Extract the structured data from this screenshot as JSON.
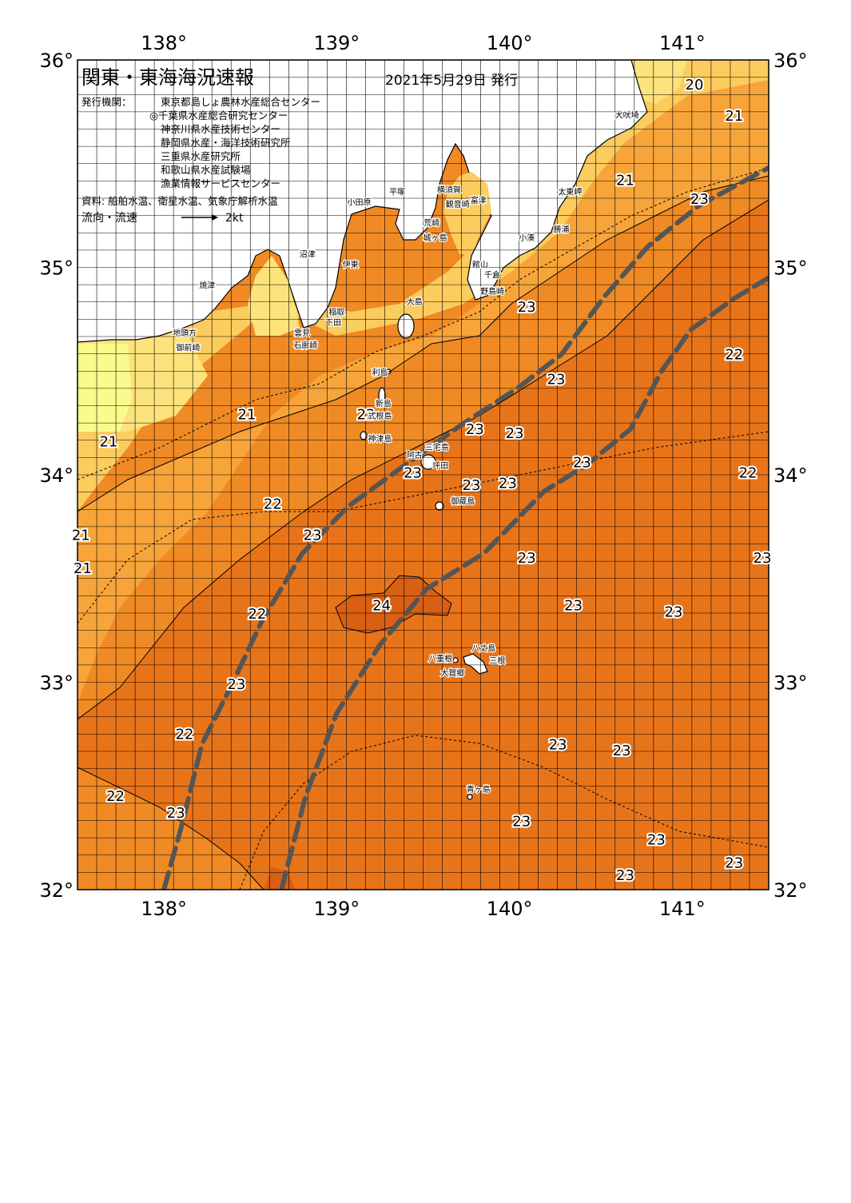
{
  "header": {
    "title": "関東・東海海況速報",
    "date": "2021年5月29日 発行",
    "issuer_label": "発行機関：",
    "issuers": [
      "東京都島しょ農林水産総合センター",
      "◎千葉県水産総合研究センター",
      "神奈川県水産技術センター",
      "静岡県水産・海洋技術研究所",
      "三重県水産研究所",
      "和歌山県水産試験場",
      "漁業情報サービスセンター"
    ],
    "source": "資料: 船舶水温、衛星水温、気象庁解析水温",
    "flow_label": "流向・流速",
    "flow_unit": "2kt"
  },
  "axes": {
    "lon_labels": [
      "138°",
      "139°",
      "140°",
      "141°"
    ],
    "lat_labels": [
      "36°",
      "35°",
      "34°",
      "33°",
      "32°"
    ]
  },
  "colors": {
    "land": "#ffffff",
    "t19": "#fbfb8c",
    "t20": "#fde37c",
    "t21": "#fbcc5e",
    "t22": "#f7a43a",
    "t23": "#f08a24",
    "t23h": "#e8741a",
    "t24": "#d85f13",
    "current": "#555555"
  },
  "temperatures": [
    {
      "value": "20",
      "lon": 141.07,
      "lat": 35.88
    },
    {
      "value": "21",
      "lon": 141.3,
      "lat": 35.73
    },
    {
      "value": "21",
      "lon": 140.67,
      "lat": 35.42
    },
    {
      "value": "23",
      "lon": 141.1,
      "lat": 35.33
    },
    {
      "value": "23",
      "lon": 140.1,
      "lat": 34.81
    },
    {
      "value": "22",
      "lon": 141.3,
      "lat": 34.58
    },
    {
      "value": "23",
      "lon": 140.27,
      "lat": 34.46
    },
    {
      "value": "21",
      "lon": 138.48,
      "lat": 34.29
    },
    {
      "value": "22",
      "lon": 139.17,
      "lat": 34.29
    },
    {
      "value": "23",
      "lon": 139.8,
      "lat": 34.22
    },
    {
      "value": "23",
      "lon": 140.03,
      "lat": 34.2
    },
    {
      "value": "21",
      "lon": 137.68,
      "lat": 34.16
    },
    {
      "value": "23",
      "lon": 140.42,
      "lat": 34.06
    },
    {
      "value": "23",
      "lon": 139.44,
      "lat": 34.01
    },
    {
      "value": "22",
      "lon": 141.38,
      "lat": 34.01
    },
    {
      "value": "23",
      "lon": 139.78,
      "lat": 33.95
    },
    {
      "value": "23",
      "lon": 139.99,
      "lat": 33.96
    },
    {
      "value": "22",
      "lon": 138.63,
      "lat": 33.86
    },
    {
      "value": "21",
      "lon": 137.52,
      "lat": 33.71
    },
    {
      "value": "23",
      "lon": 138.86,
      "lat": 33.71
    },
    {
      "value": "23",
      "lon": 140.1,
      "lat": 33.6
    },
    {
      "value": "21",
      "lon": 137.53,
      "lat": 33.55
    },
    {
      "value": "23",
      "lon": 141.5,
      "lat": 33.6
    },
    {
      "value": "24",
      "lon": 139.26,
      "lat": 33.37
    },
    {
      "value": "23",
      "lon": 140.37,
      "lat": 33.37
    },
    {
      "value": "23",
      "lon": 140.95,
      "lat": 33.34
    },
    {
      "value": "22",
      "lon": 138.54,
      "lat": 33.33
    },
    {
      "value": "23",
      "lon": 138.42,
      "lat": 32.99
    },
    {
      "value": "22",
      "lon": 138.12,
      "lat": 32.75
    },
    {
      "value": "23",
      "lon": 140.28,
      "lat": 32.7
    },
    {
      "value": "23",
      "lon": 140.65,
      "lat": 32.67
    },
    {
      "value": "22",
      "lon": 137.72,
      "lat": 32.45
    },
    {
      "value": "23",
      "lon": 138.07,
      "lat": 32.37
    },
    {
      "value": "23",
      "lon": 140.07,
      "lat": 32.33
    },
    {
      "value": "23",
      "lon": 140.85,
      "lat": 32.24
    },
    {
      "value": "23",
      "lon": 141.3,
      "lat": 32.13
    },
    {
      "value": "23",
      "lon": 140.67,
      "lat": 32.07
    }
  ],
  "places": [
    {
      "name": "犬吠埼",
      "lon": 140.68,
      "lat": 35.72
    },
    {
      "name": "太東岬",
      "lon": 140.35,
      "lat": 35.35
    },
    {
      "name": "勝浦",
      "lon": 140.3,
      "lat": 35.17
    },
    {
      "name": "小湊",
      "lon": 140.1,
      "lat": 35.13
    },
    {
      "name": "富津",
      "lon": 139.82,
      "lat": 35.31
    },
    {
      "name": "館山",
      "lon": 139.83,
      "lat": 35.0
    },
    {
      "name": "千倉",
      "lon": 139.9,
      "lat": 34.95
    },
    {
      "name": "野島崎",
      "lon": 139.9,
      "lat": 34.87
    },
    {
      "name": "横須賀",
      "lon": 139.65,
      "lat": 35.36
    },
    {
      "name": "観音崎",
      "lon": 139.7,
      "lat": 35.29
    },
    {
      "name": "平塚",
      "lon": 139.35,
      "lat": 35.35
    },
    {
      "name": "小田原",
      "lon": 139.13,
      "lat": 35.3
    },
    {
      "name": "荒崎",
      "lon": 139.55,
      "lat": 35.2
    },
    {
      "name": "城ヶ島",
      "lon": 139.57,
      "lat": 35.13
    },
    {
      "name": "沼津",
      "lon": 138.83,
      "lat": 35.05
    },
    {
      "name": "伊東",
      "lon": 139.08,
      "lat": 35.0
    },
    {
      "name": "焼津",
      "lon": 138.25,
      "lat": 34.9
    },
    {
      "name": "稲取",
      "lon": 139.0,
      "lat": 34.77
    },
    {
      "name": "下田",
      "lon": 138.98,
      "lat": 34.72
    },
    {
      "name": "雲見",
      "lon": 138.8,
      "lat": 34.67
    },
    {
      "name": "石廊崎",
      "lon": 138.82,
      "lat": 34.61
    },
    {
      "name": "地頭方",
      "lon": 138.12,
      "lat": 34.67
    },
    {
      "name": "御前崎",
      "lon": 138.14,
      "lat": 34.6
    },
    {
      "name": "大島",
      "lon": 139.45,
      "lat": 34.82
    },
    {
      "name": "利島",
      "lon": 139.25,
      "lat": 34.48
    },
    {
      "name": "新島",
      "lon": 139.27,
      "lat": 34.33
    },
    {
      "name": "式根島",
      "lon": 139.25,
      "lat": 34.27
    },
    {
      "name": "神津島",
      "lon": 139.25,
      "lat": 34.16
    },
    {
      "name": "三宅島",
      "lon": 139.58,
      "lat": 34.12
    },
    {
      "name": "阿古",
      "lon": 139.45,
      "lat": 34.08
    },
    {
      "name": "坪田",
      "lon": 139.6,
      "lat": 34.03
    },
    {
      "name": "御蔵島",
      "lon": 139.73,
      "lat": 33.86
    },
    {
      "name": "八丈島",
      "lon": 139.85,
      "lat": 33.15
    },
    {
      "name": "八重根",
      "lon": 139.6,
      "lat": 33.1
    },
    {
      "name": "三根",
      "lon": 139.93,
      "lat": 33.09
    },
    {
      "name": "大賀郷",
      "lon": 139.67,
      "lat": 33.03
    },
    {
      "name": "青ヶ島",
      "lon": 139.82,
      "lat": 32.47
    }
  ],
  "currents": [
    {
      "name": "kuroshio-inner",
      "points": [
        [
          138.0,
          32.0
        ],
        [
          138.1,
          32.3
        ],
        [
          138.22,
          32.7
        ],
        [
          138.4,
          33.0
        ],
        [
          138.57,
          33.3
        ],
        [
          138.8,
          33.62
        ],
        [
          139.07,
          33.85
        ],
        [
          139.4,
          34.05
        ],
        [
          139.72,
          34.24
        ],
        [
          140.05,
          34.42
        ],
        [
          140.3,
          34.58
        ],
        [
          140.55,
          34.86
        ],
        [
          140.8,
          35.1
        ],
        [
          141.1,
          35.3
        ],
        [
          141.5,
          35.48
        ]
      ]
    },
    {
      "name": "kuroshio-outer",
      "points": [
        [
          138.68,
          32.0
        ],
        [
          138.82,
          32.45
        ],
        [
          139.0,
          32.85
        ],
        [
          139.25,
          33.18
        ],
        [
          139.52,
          33.45
        ],
        [
          139.85,
          33.62
        ],
        [
          140.2,
          33.92
        ],
        [
          140.45,
          34.05
        ],
        [
          140.7,
          34.22
        ],
        [
          140.88,
          34.5
        ],
        [
          141.05,
          34.7
        ],
        [
          141.3,
          34.85
        ],
        [
          141.5,
          34.95
        ]
      ]
    }
  ],
  "ticks_lon": [
    138,
    139,
    140,
    141
  ],
  "ticks_lat": [
    36,
    35,
    34,
    33,
    32
  ]
}
